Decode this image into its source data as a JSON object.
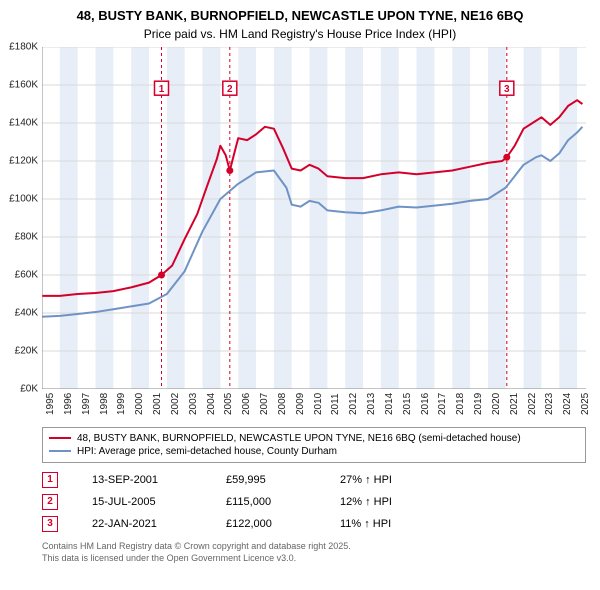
{
  "title_line1": "48, BUSTY BANK, BURNOPFIELD, NEWCASTLE UPON TYNE, NE16 6BQ",
  "title_line2": "Price paid vs. HM Land Registry's House Price Index (HPI)",
  "chart": {
    "type": "line",
    "x_min_year": 1995,
    "x_max_year": 2025.5,
    "y_min": 0,
    "y_max": 180000,
    "y_ticks": [
      0,
      20000,
      40000,
      60000,
      80000,
      100000,
      120000,
      140000,
      160000,
      180000
    ],
    "y_labels": [
      "£0K",
      "£20K",
      "£40K",
      "£60K",
      "£80K",
      "£100K",
      "£120K",
      "£140K",
      "£160K",
      "£180K"
    ],
    "x_ticks": [
      1995,
      1996,
      1997,
      1998,
      1999,
      2000,
      2001,
      2002,
      2003,
      2004,
      2005,
      2006,
      2007,
      2008,
      2009,
      2010,
      2011,
      2012,
      2013,
      2014,
      2015,
      2016,
      2017,
      2018,
      2019,
      2020,
      2021,
      2022,
      2023,
      2024,
      2025
    ],
    "banding_color": "#e8eef7",
    "background_color": "#ffffff",
    "grid_color": "#d9d9d9",
    "axis_color": "#888888",
    "series": [
      {
        "name": "price_paid",
        "color": "#d4002a",
        "width": 2,
        "points": [
          [
            1995,
            49000
          ],
          [
            1996,
            49000
          ],
          [
            1997,
            50000
          ],
          [
            1998,
            50500
          ],
          [
            1999,
            51500
          ],
          [
            2000,
            53500
          ],
          [
            2001,
            56000
          ],
          [
            2001.7,
            59995
          ],
          [
            2002.3,
            65000
          ],
          [
            2003,
            79000
          ],
          [
            2003.7,
            92000
          ],
          [
            2004.3,
            108000
          ],
          [
            2004.8,
            121000
          ],
          [
            2005,
            128000
          ],
          [
            2005.3,
            123000
          ],
          [
            2005.53,
            115000
          ],
          [
            2006,
            132000
          ],
          [
            2006.5,
            131000
          ],
          [
            2007,
            134000
          ],
          [
            2007.5,
            138000
          ],
          [
            2008,
            137000
          ],
          [
            2008.5,
            127000
          ],
          [
            2009,
            116000
          ],
          [
            2009.5,
            115000
          ],
          [
            2010,
            118000
          ],
          [
            2010.5,
            116000
          ],
          [
            2011,
            112000
          ],
          [
            2012,
            111000
          ],
          [
            2013,
            111000
          ],
          [
            2014,
            113000
          ],
          [
            2015,
            114000
          ],
          [
            2016,
            113000
          ],
          [
            2017,
            114000
          ],
          [
            2018,
            115000
          ],
          [
            2019,
            117000
          ],
          [
            2020,
            119000
          ],
          [
            2020.8,
            120000
          ],
          [
            2021.06,
            122000
          ],
          [
            2021.5,
            128000
          ],
          [
            2022,
            137000
          ],
          [
            2022.5,
            140000
          ],
          [
            2023,
            143000
          ],
          [
            2023.5,
            139000
          ],
          [
            2024,
            143000
          ],
          [
            2024.5,
            149000
          ],
          [
            2025,
            152000
          ],
          [
            2025.3,
            150000
          ]
        ]
      },
      {
        "name": "hpi",
        "color": "#6f93c5",
        "width": 2,
        "points": [
          [
            1995,
            38000
          ],
          [
            1996,
            38500
          ],
          [
            1997,
            39500
          ],
          [
            1998,
            40500
          ],
          [
            1999,
            42000
          ],
          [
            2000,
            43500
          ],
          [
            2001,
            45000
          ],
          [
            2002,
            50000
          ],
          [
            2003,
            62000
          ],
          [
            2004,
            83000
          ],
          [
            2005,
            100000
          ],
          [
            2006,
            108000
          ],
          [
            2007,
            114000
          ],
          [
            2008,
            115000
          ],
          [
            2008.7,
            106000
          ],
          [
            2009,
            97000
          ],
          [
            2009.5,
            96000
          ],
          [
            2010,
            99000
          ],
          [
            2010.5,
            98000
          ],
          [
            2011,
            94000
          ],
          [
            2012,
            93000
          ],
          [
            2013,
            92500
          ],
          [
            2014,
            94000
          ],
          [
            2015,
            96000
          ],
          [
            2016,
            95500
          ],
          [
            2017,
            96500
          ],
          [
            2018,
            97500
          ],
          [
            2019,
            99000
          ],
          [
            2020,
            100000
          ],
          [
            2021,
            106000
          ],
          [
            2022,
            118000
          ],
          [
            2022.7,
            122000
          ],
          [
            2023,
            123000
          ],
          [
            2023.5,
            120000
          ],
          [
            2024,
            124000
          ],
          [
            2024.5,
            131000
          ],
          [
            2025,
            135000
          ],
          [
            2025.3,
            138000
          ]
        ]
      }
    ],
    "markers": [
      {
        "id": "1",
        "x": 2001.7,
        "y": 59995,
        "color": "#d4002a"
      },
      {
        "id": "2",
        "x": 2005.53,
        "y": 115000,
        "color": "#d4002a"
      },
      {
        "id": "3",
        "x": 2021.06,
        "y": 122000,
        "color": "#d4002a"
      }
    ],
    "marker_box_top_y": 162000,
    "marker_box_size": 14
  },
  "legend": {
    "items": [
      {
        "color": "#d4002a",
        "label": "48, BUSTY BANK, BURNOPFIELD, NEWCASTLE UPON TYNE, NE16 6BQ (semi-detached house)"
      },
      {
        "color": "#6f93c5",
        "label": "HPI: Average price, semi-detached house, County Durham"
      }
    ]
  },
  "marker_table": {
    "rows": [
      {
        "id": "1",
        "color": "#d4002a",
        "date": "13-SEP-2001",
        "price": "£59,995",
        "pct": "27% ↑ HPI"
      },
      {
        "id": "2",
        "color": "#d4002a",
        "date": "15-JUL-2005",
        "price": "£115,000",
        "pct": "12% ↑ HPI"
      },
      {
        "id": "3",
        "color": "#d4002a",
        "date": "22-JAN-2021",
        "price": "£122,000",
        "pct": "11% ↑ HPI"
      }
    ]
  },
  "attribution": {
    "line1": "Contains HM Land Registry data © Crown copyright and database right 2025.",
    "line2": "This data is licensed under the Open Government Licence v3.0."
  }
}
